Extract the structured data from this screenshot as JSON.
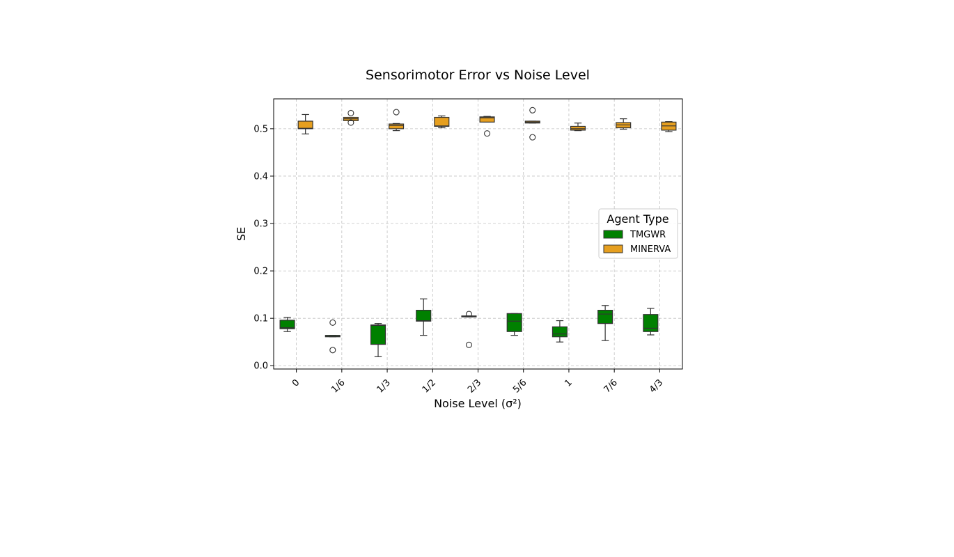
{
  "chart_data": {
    "type": "boxplot",
    "title": "Sensorimotor Error vs Noise Level",
    "xlabel": "Noise Level (σ²)",
    "ylabel": "SE",
    "categories": [
      "0",
      "1/6",
      "1/3",
      "1/2",
      "2/3",
      "5/6",
      "1",
      "7/6",
      "4/3"
    ],
    "ylim": [
      -0.007,
      0.563
    ],
    "yticks": [
      0.0,
      0.1,
      0.2,
      0.3,
      0.4,
      0.5
    ],
    "ytick_labels": [
      "0.0",
      "0.1",
      "0.2",
      "0.3",
      "0.4",
      "0.5"
    ],
    "grid": true,
    "legend": {
      "title": "Agent Type",
      "placement": "center-right"
    },
    "series": [
      {
        "name": "TMGWR",
        "color": "#008000",
        "boxes": [
          {
            "whisker_low": 0.072,
            "q1": 0.078,
            "median": 0.08,
            "q3": 0.096,
            "whisker_high": 0.102,
            "fliers": []
          },
          {
            "whisker_low": 0.061,
            "q1": 0.061,
            "median": 0.062,
            "q3": 0.064,
            "whisker_high": 0.064,
            "fliers": [
              0.091,
              0.033
            ]
          },
          {
            "whisker_low": 0.019,
            "q1": 0.045,
            "median": 0.085,
            "q3": 0.086,
            "whisker_high": 0.089,
            "fliers": []
          },
          {
            "whisker_low": 0.064,
            "q1": 0.094,
            "median": 0.095,
            "q3": 0.117,
            "whisker_high": 0.141,
            "fliers": []
          },
          {
            "whisker_low": 0.103,
            "q1": 0.103,
            "median": 0.104,
            "q3": 0.105,
            "whisker_high": 0.105,
            "fliers": [
              0.109,
              0.044
            ]
          },
          {
            "whisker_low": 0.064,
            "q1": 0.072,
            "median": 0.094,
            "q3": 0.11,
            "whisker_high": 0.11,
            "fliers": []
          },
          {
            "whisker_low": 0.05,
            "q1": 0.061,
            "median": 0.067,
            "q3": 0.082,
            "whisker_high": 0.095,
            "fliers": []
          },
          {
            "whisker_low": 0.053,
            "q1": 0.089,
            "median": 0.109,
            "q3": 0.117,
            "whisker_high": 0.127,
            "fliers": []
          },
          {
            "whisker_low": 0.065,
            "q1": 0.072,
            "median": 0.079,
            "q3": 0.108,
            "whisker_high": 0.121,
            "fliers": []
          }
        ]
      },
      {
        "name": "MINERVA",
        "color": "#E69F1F",
        "boxes": [
          {
            "whisker_low": 0.489,
            "q1": 0.5,
            "median": 0.501,
            "q3": 0.516,
            "whisker_high": 0.53,
            "fliers": []
          },
          {
            "whisker_low": 0.517,
            "q1": 0.517,
            "median": 0.521,
            "q3": 0.524,
            "whisker_high": 0.524,
            "fliers": [
              0.533,
              0.513
            ]
          },
          {
            "whisker_low": 0.496,
            "q1": 0.5,
            "median": 0.507,
            "q3": 0.51,
            "whisker_high": 0.511,
            "fliers": [
              0.535
            ]
          },
          {
            "whisker_low": 0.502,
            "q1": 0.505,
            "median": 0.506,
            "q3": 0.524,
            "whisker_high": 0.527,
            "fliers": []
          },
          {
            "whisker_low": 0.514,
            "q1": 0.514,
            "median": 0.523,
            "q3": 0.525,
            "whisker_high": 0.526,
            "fliers": [
              0.49
            ]
          },
          {
            "whisker_low": 0.512,
            "q1": 0.512,
            "median": 0.514,
            "q3": 0.516,
            "whisker_high": 0.516,
            "fliers": [
              0.539,
              0.482
            ]
          },
          {
            "whisker_low": 0.496,
            "q1": 0.497,
            "median": 0.5,
            "q3": 0.505,
            "whisker_high": 0.512,
            "fliers": []
          },
          {
            "whisker_low": 0.499,
            "q1": 0.502,
            "median": 0.508,
            "q3": 0.513,
            "whisker_high": 0.521,
            "fliers": []
          },
          {
            "whisker_low": 0.494,
            "q1": 0.497,
            "median": 0.506,
            "q3": 0.514,
            "whisker_high": 0.515,
            "fliers": []
          }
        ]
      }
    ]
  }
}
